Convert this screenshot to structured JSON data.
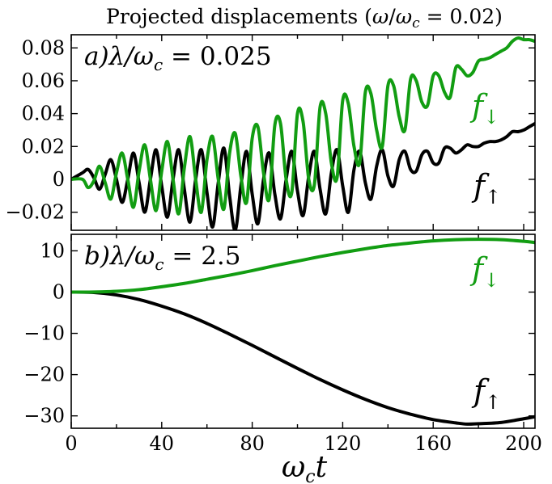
{
  "figure": {
    "title": "Projected displacements (ω/ω_c = 0.02)",
    "title_parts": {
      "main": "Projected displacements (",
      "omega": "ω",
      "omega_c": "ω",
      "sub_c": "c",
      "tail": " = 0.02)"
    },
    "xlabel": "ω_c t",
    "xlabel_parts": {
      "omega": "ω",
      "sub_c": "c",
      "t": "t"
    },
    "colors": {
      "f_up": "#000000",
      "f_down": "#129d12"
    }
  },
  "chart_data": [
    {
      "type": "line",
      "panel_label": "a)λ/ω_c = 0.025",
      "label_parts": {
        "letter": "a)",
        "lambda": "λ/ω",
        "sub_c": "c",
        "rest": " = 0.025"
      },
      "xlim": [
        0,
        205
      ],
      "ylim": [
        -0.031,
        0.088
      ],
      "xticks": [
        0,
        40,
        80,
        120,
        160,
        200
      ],
      "yticks": [
        -0.02,
        0,
        0.02,
        0.04,
        0.06,
        0.08
      ],
      "ytick_labels": [
        "−0.02",
        "0",
        "0.02",
        "0.04",
        "0.06",
        "0.08"
      ],
      "grid": false,
      "series": [
        {
          "name": "f_↓",
          "color": "#129d12",
          "x": [
            0,
            5,
            7.5,
            10,
            12.5,
            15,
            17.5,
            20,
            22.5,
            25,
            27.5,
            30,
            32.5,
            35,
            37.5,
            40,
            42.5,
            45,
            47.5,
            50,
            52.5,
            55,
            57.5,
            60,
            62.5,
            65,
            67.5,
            70,
            72.5,
            75,
            77.5,
            80,
            82.5,
            85,
            87.5,
            90,
            92.5,
            95,
            97.5,
            100,
            102.5,
            105,
            107.5,
            110,
            112.5,
            115,
            117.5,
            120,
            122.5,
            125,
            127.5,
            130,
            132.5,
            135,
            137.5,
            140,
            142.5,
            145,
            147.5,
            150,
            152.5,
            155,
            157.5,
            160,
            162.5,
            165,
            167.5,
            170,
            172.5,
            175,
            177.5,
            180,
            182.5,
            185,
            187.5,
            190,
            192.5,
            195,
            197.5,
            200,
            202.5,
            205
          ],
          "y": [
            0,
            0,
            -0.005,
            -0.001,
            0.008,
            -0.002,
            -0.012,
            0.004,
            0.016,
            0.0,
            -0.017,
            0.005,
            0.021,
            0.0,
            -0.019,
            0.005,
            0.023,
            0.0,
            -0.021,
            0.007,
            0.026,
            0.0,
            -0.02,
            0.012,
            0.026,
            0.0,
            -0.018,
            0.016,
            0.028,
            0.002,
            -0.014,
            0.025,
            0.032,
            0.004,
            -0.012,
            0.033,
            0.034,
            0.0,
            -0.008,
            0.04,
            0.035,
            0.0,
            -0.003,
            0.044,
            0.04,
            0.01,
            0.001,
            0.048,
            0.046,
            0.02,
            0.01,
            0.053,
            0.052,
            0.03,
            0.02,
            0.057,
            0.057,
            0.038,
            0.03,
            0.061,
            0.06,
            0.047,
            0.045,
            0.063,
            0.063,
            0.053,
            0.05,
            0.068,
            0.067,
            0.063,
            0.065,
            0.072,
            0.073,
            0.074,
            0.076,
            0.078,
            0.08,
            0.084,
            0.086,
            0.085,
            0.085,
            0.084
          ]
        },
        {
          "name": "f_↑",
          "color": "#000000",
          "x": [
            0,
            5,
            7.5,
            10,
            12.5,
            15,
            17.5,
            20,
            22.5,
            25,
            27.5,
            30,
            32.5,
            35,
            37.5,
            40,
            42.5,
            45,
            47.5,
            50,
            52.5,
            55,
            57.5,
            60,
            62.5,
            65,
            67.5,
            70,
            72.5,
            75,
            77.5,
            80,
            82.5,
            85,
            87.5,
            90,
            92.5,
            95,
            97.5,
            100,
            102.5,
            105,
            107.5,
            110,
            112.5,
            115,
            117.5,
            120,
            122.5,
            125,
            127.5,
            130,
            132.5,
            135,
            137.5,
            140,
            142.5,
            145,
            147.5,
            150,
            152.5,
            155,
            157.5,
            160,
            162.5,
            165,
            167.5,
            170,
            172.5,
            175,
            177.5,
            180,
            182.5,
            185,
            187.5,
            190,
            192.5,
            195,
            197.5,
            200,
            202.5,
            205
          ],
          "y": [
            0,
            0.004,
            0.006,
            0.001,
            -0.006,
            0.003,
            0.012,
            0.0,
            -0.014,
            0.0,
            0.016,
            -0.002,
            -0.02,
            0.0,
            0.018,
            -0.004,
            -0.023,
            0.0,
            0.018,
            -0.006,
            -0.026,
            0.0,
            0.018,
            -0.008,
            -0.029,
            -0.002,
            0.019,
            -0.01,
            -0.031,
            -0.004,
            0.017,
            -0.009,
            -0.027,
            0.0,
            0.016,
            -0.009,
            -0.024,
            0.0,
            0.017,
            -0.007,
            -0.022,
            0.002,
            0.017,
            -0.006,
            -0.021,
            0.004,
            0.018,
            -0.004,
            -0.02,
            0.006,
            0.017,
            -0.002,
            -0.012,
            0.008,
            0.018,
            0.002,
            -0.004,
            0.012,
            0.017,
            0.006,
            0.005,
            0.015,
            0.017,
            0.01,
            0.01,
            0.019,
            0.019,
            0.016,
            0.018,
            0.021,
            0.02,
            0.02,
            0.022,
            0.023,
            0.023,
            0.024,
            0.026,
            0.029,
            0.029,
            0.03,
            0.032,
            0.034
          ]
        }
      ]
    },
    {
      "type": "line",
      "panel_label": "b)λ/ω_c = 2.5",
      "label_parts": {
        "letter": "b)",
        "lambda": "λ/ω",
        "sub_c": "c",
        "rest": " = 2.5"
      },
      "xlim": [
        0,
        205
      ],
      "ylim": [
        -33,
        14
      ],
      "xticks": [
        0,
        40,
        80,
        120,
        160,
        200
      ],
      "xtick_labels": [
        "0",
        "40",
        "80",
        "120",
        "160",
        "200"
      ],
      "yticks": [
        -30,
        -20,
        -10,
        0,
        10
      ],
      "ytick_labels": [
        "−30",
        "−20",
        "−10",
        "0",
        "10"
      ],
      "grid": false,
      "series": [
        {
          "name": "f_↓",
          "color": "#129d12",
          "x": [
            0,
            10,
            20,
            30,
            40,
            50,
            60,
            70,
            80,
            90,
            100,
            110,
            120,
            130,
            140,
            150,
            160,
            170,
            180,
            190,
            200,
            205
          ],
          "y": [
            0,
            0.03,
            0.2,
            0.6,
            1.3,
            2.1,
            3.1,
            4.1,
            5.2,
            6.4,
            7.5,
            8.6,
            9.6,
            10.5,
            11.3,
            11.9,
            12.4,
            12.7,
            12.8,
            12.7,
            12.3,
            12.0
          ]
        },
        {
          "name": "f_↑",
          "color": "#000000",
          "x": [
            0,
            10,
            20,
            30,
            40,
            50,
            60,
            70,
            80,
            90,
            100,
            110,
            120,
            130,
            140,
            150,
            160,
            170,
            175,
            180,
            190,
            200,
            205
          ],
          "y": [
            0,
            -0.1,
            -0.7,
            -1.8,
            -3.4,
            -5.3,
            -7.6,
            -10.2,
            -12.9,
            -15.7,
            -18.5,
            -21.2,
            -23.7,
            -26.0,
            -28.0,
            -29.6,
            -30.9,
            -31.7,
            -32.0,
            -31.9,
            -31.6,
            -30.7,
            -30.2
          ]
        }
      ]
    }
  ]
}
